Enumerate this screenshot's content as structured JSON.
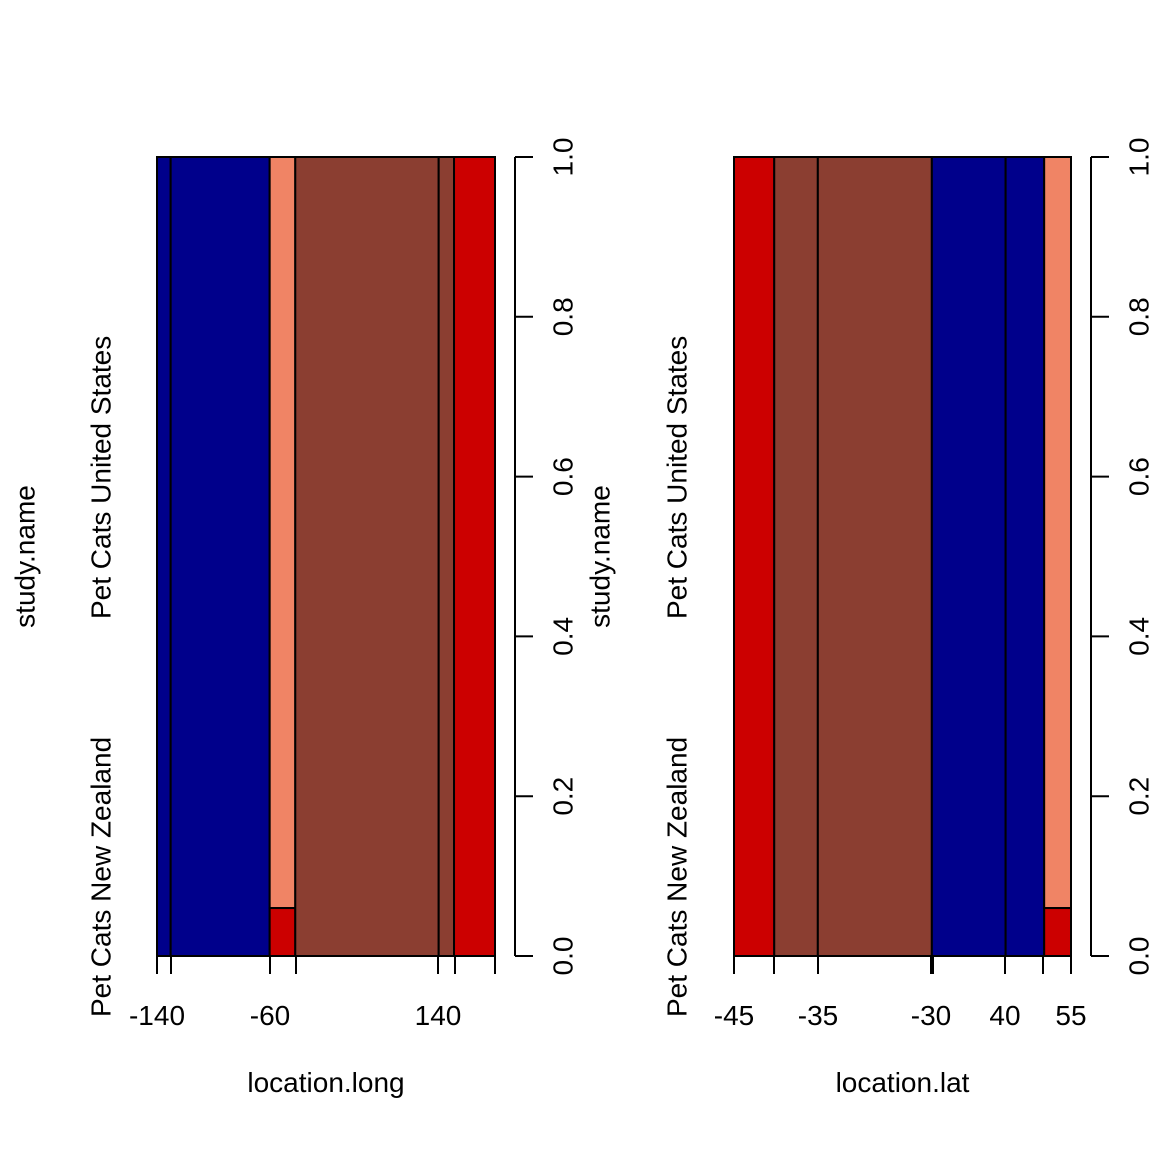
{
  "chart_data": [
    {
      "type": "spineplot",
      "xlabel": "location.long",
      "ylabel": "study.name",
      "x_tick_labels": [
        "-140",
        "-60",
        "140"
      ],
      "y_category_labels": [
        "Pet Cats New Zealand",
        "Pet Cats United States"
      ],
      "right_axis_ticks": [
        "0.0",
        "0.2",
        "0.4",
        "0.6",
        "0.8",
        "1.0"
      ],
      "ylim": [
        0,
        1
      ],
      "bins": [
        {
          "x_range": "< -140",
          "width_fraction": 0.04,
          "New Zealand": 0.0,
          "United States": 1.0,
          "us_color": "#00008B",
          "nz_color": "#CC0000"
        },
        {
          "x_range": "-140 to -60",
          "width_fraction": 0.29,
          "New Zealand": 0.0,
          "United States": 1.0,
          "us_color": "#00008B",
          "nz_color": "#CC0000"
        },
        {
          "x_range": "-60 to -40",
          "width_fraction": 0.075,
          "New Zealand": 0.06,
          "United States": 0.94,
          "us_color": "#F08465",
          "nz_color": "#CC0000"
        },
        {
          "x_range": "-40 to 140",
          "width_fraction": 0.42,
          "New Zealand": 1.0,
          "United States": 0.0,
          "us_color": "#8B3E31",
          "nz_color": "#8B3E31"
        },
        {
          "x_range": "140 to 160",
          "width_fraction": 0.045,
          "New Zealand": 1.0,
          "United States": 0.0,
          "us_color": "#8B3E31",
          "nz_color": "#8B3E31"
        },
        {
          "x_range": "> 160",
          "width_fraction": 0.12,
          "New Zealand": 1.0,
          "United States": 0.0,
          "us_color": "#CC0000",
          "nz_color": "#CC0000"
        }
      ]
    },
    {
      "type": "spineplot",
      "xlabel": "location.lat",
      "ylabel": "study.name",
      "x_tick_labels": [
        "-45",
        "-35",
        "-30",
        "40",
        "55"
      ],
      "y_category_labels": [
        "Pet Cats New Zealand",
        "Pet Cats United States"
      ],
      "right_axis_ticks": [
        "0.0",
        "0.2",
        "0.4",
        "0.6",
        "0.8",
        "1.0"
      ],
      "ylim": [
        0,
        1
      ],
      "bins": [
        {
          "x_range": "-45 to -40",
          "width_fraction": 0.12,
          "New Zealand": 1.0,
          "United States": 0.0,
          "us_color": "#CC0000",
          "nz_color": "#CC0000"
        },
        {
          "x_range": "-40 to -35",
          "width_fraction": 0.13,
          "New Zealand": 1.0,
          "United States": 0.0,
          "us_color": "#8B3E31",
          "nz_color": "#8B3E31"
        },
        {
          "x_range": "-35 to -30",
          "width_fraction": 0.34,
          "New Zealand": 1.0,
          "United States": 0.0,
          "us_color": "#8B3E31",
          "nz_color": "#8B3E31"
        },
        {
          "x_range": "-30 to 40",
          "width_fraction": 0.22,
          "New Zealand": 0.0,
          "United States": 1.0,
          "us_color": "#00008B",
          "nz_color": "#00008B"
        },
        {
          "x_range": "40 to 50",
          "width_fraction": 0.115,
          "New Zealand": 0.0,
          "United States": 1.0,
          "us_color": "#00008B",
          "nz_color": "#00008B"
        },
        {
          "x_range": "50 to 55",
          "width_fraction": 0.08,
          "New Zealand": 0.06,
          "United States": 0.94,
          "us_color": "#F08465",
          "nz_color": "#CC0000"
        }
      ]
    }
  ]
}
